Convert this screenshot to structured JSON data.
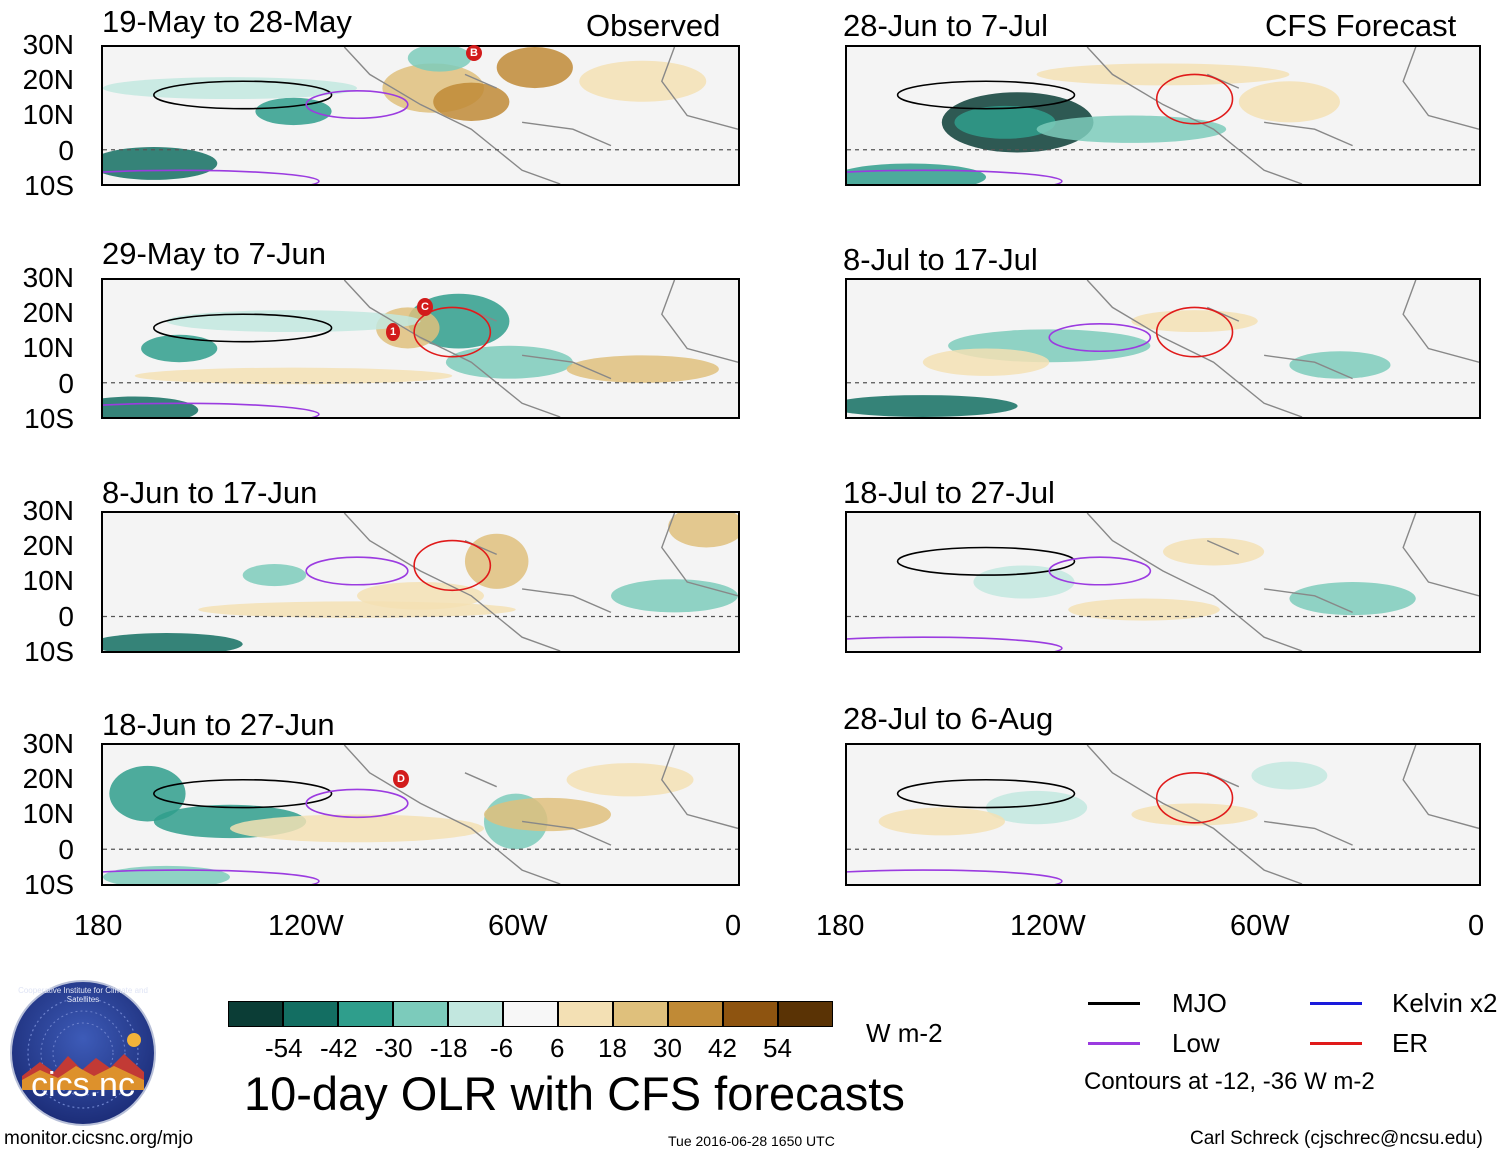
{
  "panels_left": [
    {
      "date": "19-May to 28-May",
      "header": "Observed"
    },
    {
      "date": "29-May to 7-Jun",
      "header": ""
    },
    {
      "date": "8-Jun to 17-Jun",
      "header": ""
    },
    {
      "date": "18-Jun to 27-Jun",
      "header": ""
    }
  ],
  "panels_right": [
    {
      "date": "28-Jun to 7-Jul",
      "header": "CFS Forecast"
    },
    {
      "date": "8-Jul to 17-Jul",
      "header": ""
    },
    {
      "date": "18-Jul to 27-Jul",
      "header": ""
    },
    {
      "date": "28-Jul to 6-Aug",
      "header": ""
    }
  ],
  "lat_labels": [
    "30N",
    "20N",
    "10N",
    "0",
    "10S"
  ],
  "lon_labels": [
    "180",
    "120W",
    "60W",
    "0"
  ],
  "storm_markers": [
    "B",
    "C",
    "1",
    "D"
  ],
  "colorbar": {
    "labels": [
      "-54",
      "-42",
      "-30",
      "-18",
      "-6",
      "6",
      "18",
      "30",
      "42",
      "54"
    ],
    "colors": [
      "#0b3d36",
      "#136e62",
      "#2f9e8c",
      "#7ccbbb",
      "#c2e7df",
      "#f7f7f7",
      "#f3e0b4",
      "#dfc07c",
      "#c08a36",
      "#8e5410",
      "#5a3305"
    ],
    "units": "W m-2"
  },
  "main_title": "10-day OLR with CFS forecasts",
  "legend": {
    "items": [
      {
        "label": "MJO",
        "color": "#000000"
      },
      {
        "label": "Kelvin x2",
        "color": "#1a1adb"
      },
      {
        "label": "Low",
        "color": "#9b3be0"
      },
      {
        "label": "ER",
        "color": "#e01a1a"
      }
    ],
    "contour_note": "Contours at -12, -36 W m-2"
  },
  "logo_text": "cics.nc",
  "logo_ring_text": "Cooperative Institute for Climate and Satellites",
  "footer": {
    "left": "monitor.cicsnc.org/mjo",
    "center": "Tue 2016-06-28 1650 UTC",
    "right": "Carl Schreck (cjschrec@ncsu.edu)"
  }
}
